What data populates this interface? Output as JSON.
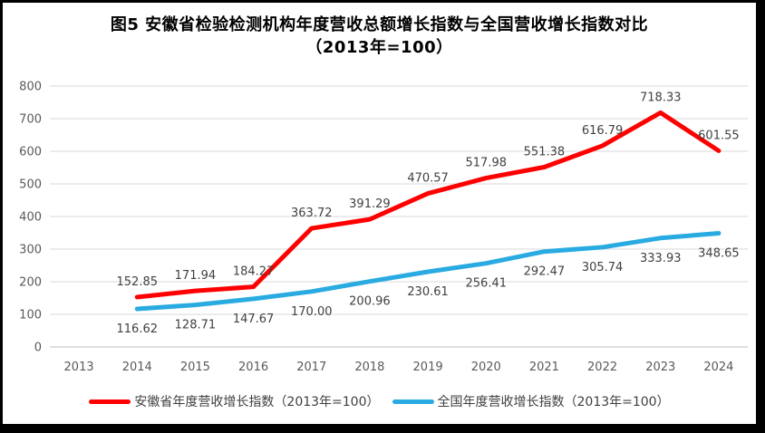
{
  "chart_data": {
    "type": "line",
    "title": "图5  安徽省检验检测机构年度营收总额增长指数与全国营收增长指数对比",
    "subtitle": "（2013年=100）",
    "categories": [
      "2013",
      "2014",
      "2015",
      "2016",
      "2017",
      "2018",
      "2019",
      "2020",
      "2021",
      "2022",
      "2023",
      "2024"
    ],
    "xlabel": "",
    "ylabel": "",
    "ylim": [
      0,
      800
    ],
    "y_ticks": [
      0,
      100,
      200,
      300,
      400,
      500,
      600,
      700,
      800
    ],
    "grid": true,
    "legend_position": "bottom",
    "series": [
      {
        "name": "安徽省年度营收增长指数（2013年=100）",
        "color": "#FF0000",
        "start_category": "2014",
        "values": [
          152.85,
          171.94,
          184.27,
          363.72,
          391.29,
          470.57,
          517.98,
          551.38,
          616.79,
          718.33,
          601.55
        ],
        "labels": [
          "152.85",
          "171.94",
          "184.27",
          "363.72",
          "391.29",
          "470.57",
          "517.98",
          "551.38",
          "616.79",
          "718.33",
          "601.55"
        ],
        "label_placement": "above"
      },
      {
        "name": "全国年度营收增长指数（2013年=100）",
        "color": "#29ABE2",
        "start_category": "2014",
        "values": [
          116.62,
          128.71,
          147.67,
          170.0,
          200.96,
          230.61,
          256.41,
          292.47,
          305.74,
          333.93,
          348.65
        ],
        "labels": [
          "116.62",
          "128.71",
          "147.67",
          "170.00",
          "200.96",
          "230.61",
          "256.41",
          "292.47",
          "305.74",
          "333.93",
          "348.65"
        ],
        "label_placement": "below"
      }
    ],
    "colors": {
      "gridline": "#D9D9D9",
      "axis_line": "#BFBFBF",
      "tick_label": "#595959",
      "data_label": "#404040"
    }
  }
}
